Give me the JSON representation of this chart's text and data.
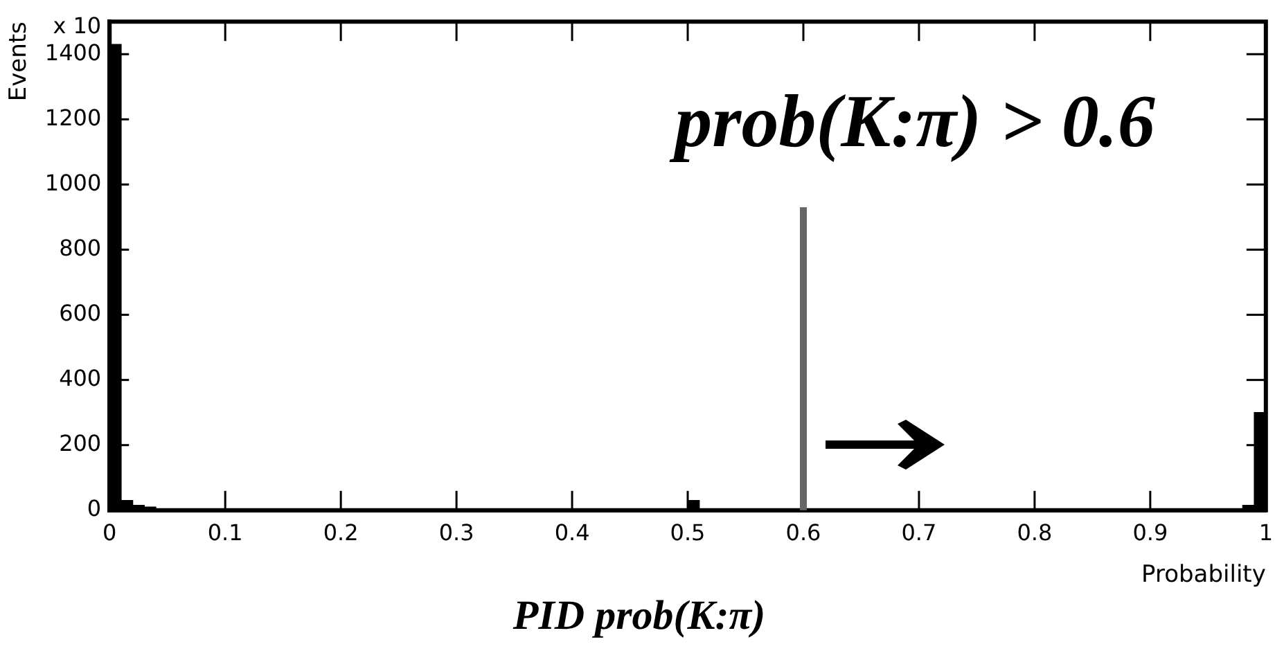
{
  "chart_data": {
    "type": "histogram",
    "xlabel": "Probability",
    "ylabel": "Events",
    "title": "PID prob(K:π)",
    "annotations": [
      "prob(K:π) > 0.6",
      "x 10"
    ],
    "bins": [
      0,
      0.01,
      0.02,
      0.03,
      0.04,
      0.05,
      0.06,
      0.07,
      0.08,
      0.09,
      0.1,
      0.11,
      0.12,
      0.13,
      0.14,
      0.15,
      0.16,
      0.17,
      0.18,
      0.19,
      0.2,
      0.21,
      0.22,
      0.23,
      0.24,
      0.25,
      0.26,
      0.27,
      0.28,
      0.29,
      0.3,
      0.31,
      0.32,
      0.33,
      0.34,
      0.35,
      0.36,
      0.37,
      0.38,
      0.39,
      0.4,
      0.41,
      0.42,
      0.43,
      0.44,
      0.45,
      0.46,
      0.47,
      0.48,
      0.49,
      0.5,
      0.51,
      0.52,
      0.53,
      0.54,
      0.55,
      0.56,
      0.57,
      0.58,
      0.59,
      0.6,
      0.61,
      0.62,
      0.63,
      0.64,
      0.65,
      0.66,
      0.67,
      0.68,
      0.69,
      0.7,
      0.71,
      0.72,
      0.73,
      0.74,
      0.75,
      0.76,
      0.77,
      0.78,
      0.79,
      0.8,
      0.81,
      0.82,
      0.83,
      0.84,
      0.85,
      0.86,
      0.87,
      0.88,
      0.89,
      0.9,
      0.91,
      0.92,
      0.93,
      0.94,
      0.95,
      0.96,
      0.97,
      0.98,
      0.99,
      1
    ],
    "values": [
      1430,
      30,
      15,
      10,
      null,
      4,
      3,
      3,
      2,
      2,
      2,
      2,
      1,
      1,
      1,
      1,
      1,
      1,
      1,
      1,
      1,
      1,
      1,
      1,
      1,
      1,
      1,
      1,
      1,
      1,
      1,
      1,
      1,
      1,
      1,
      1,
      1,
      1,
      1,
      1,
      1,
      1,
      1,
      1,
      1,
      1,
      1,
      1,
      1,
      1,
      30,
      1,
      1,
      1,
      1,
      1,
      1,
      1,
      1,
      1,
      1,
      1,
      1,
      1,
      1,
      1,
      1,
      1,
      1,
      1,
      1,
      1,
      1,
      1,
      1,
      1,
      1,
      1,
      1,
      1,
      1,
      1,
      1,
      1,
      1,
      1,
      1,
      1,
      1,
      1,
      2,
      2,
      2,
      2,
      3,
      3,
      null,
      null,
      15,
      300
    ],
    "color": "#000000",
    "xlim": [
      0,
      1
    ],
    "xticks": [
      0,
      0.1,
      0.2,
      0.3,
      0.4,
      0.5,
      0.6,
      0.7,
      0.8,
      0.9,
      1
    ],
    "ylim": [
      0,
      1500
    ],
    "yticks": [
      0,
      200,
      400,
      600,
      800,
      1000,
      1200,
      1400
    ],
    "ref_lines": [
      {
        "axis": "x",
        "value": 0.6,
        "color": "#666666"
      }
    ],
    "grid": false,
    "legend": false
  }
}
